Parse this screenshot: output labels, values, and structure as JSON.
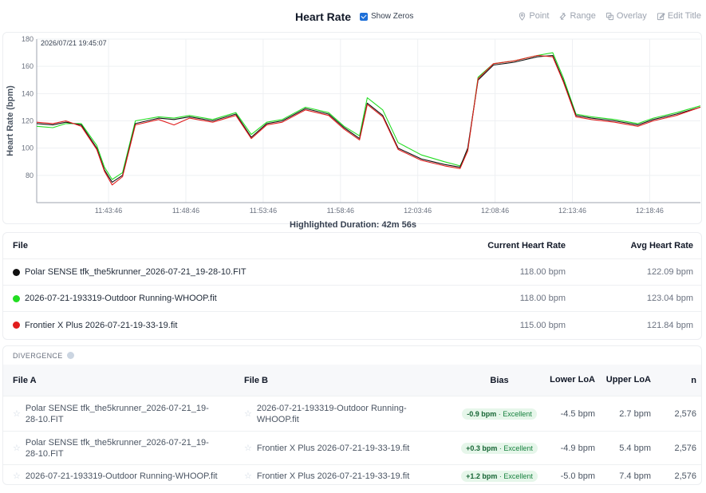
{
  "header": {
    "title": "Heart Rate",
    "show_zeros_label": "Show Zeros",
    "tools": [
      {
        "label": "Point",
        "icon": "pin-icon"
      },
      {
        "label": "Range",
        "icon": "range-icon"
      },
      {
        "label": "Overlay",
        "icon": "overlay-icon"
      },
      {
        "label": "Edit Title",
        "icon": "edit-icon"
      }
    ]
  },
  "chart_data": {
    "type": "line",
    "ylabel": "Heart Rate (bpm)",
    "xlabel": "",
    "ylim": [
      60,
      180
    ],
    "yticks": [
      80,
      100,
      120,
      140,
      160,
      180
    ],
    "xlim": [
      "11:39:07",
      "12:22:03"
    ],
    "xtick_labels": [
      "11:43:46",
      "11:48:46",
      "11:53:46",
      "11:58:46",
      "12:03:46",
      "12:08:46",
      "12:13:46",
      "12:18:46"
    ],
    "timestamp_label": "2026/07/21 19:45:07",
    "grid": true,
    "series": [
      {
        "name": "Polar SENSE tfk_the5krunner_2026-07-21_19-28-10.FIT",
        "color": "#111111",
        "x": [
          "11:39:07",
          "11:40:10",
          "11:41:00",
          "11:42:00",
          "11:43:00",
          "11:43:30",
          "11:44:00",
          "11:44:40",
          "11:45:30",
          "11:47:00",
          "11:48:00",
          "11:49:00",
          "11:50:30",
          "11:52:00",
          "11:53:00",
          "11:54:00",
          "11:55:00",
          "11:56:30",
          "11:58:00",
          "11:59:00",
          "12:00:00",
          "12:00:30",
          "12:01:30",
          "12:02:30",
          "12:04:00",
          "12:05:30",
          "12:06:30",
          "12:07:00",
          "12:07:40",
          "12:08:40",
          "12:10:00",
          "12:11:30",
          "12:12:30",
          "12:13:10",
          "12:14:00",
          "12:15:00",
          "12:16:30",
          "12:18:00",
          "12:19:00",
          "12:20:30",
          "12:22:03"
        ],
        "y": [
          118,
          117,
          119,
          117,
          100,
          84,
          75,
          80,
          118,
          122,
          121,
          123,
          120,
          125,
          108,
          118,
          120,
          129,
          125,
          115,
          107,
          133,
          124,
          100,
          92,
          88,
          86,
          100,
          150,
          161,
          163,
          167,
          168,
          150,
          124,
          122,
          120,
          117,
          121,
          125,
          130
        ]
      },
      {
        "name": "2026-07-21-193319-Outdoor Running-WHOOP.fit",
        "color": "#22dd22",
        "x": [
          "11:39:07",
          "11:40:10",
          "11:41:00",
          "11:42:00",
          "11:43:00",
          "11:43:30",
          "11:44:00",
          "11:44:40",
          "11:45:30",
          "11:47:00",
          "11:48:00",
          "11:49:00",
          "11:50:30",
          "11:52:00",
          "11:53:00",
          "11:54:00",
          "11:55:00",
          "11:56:30",
          "11:58:00",
          "11:59:00",
          "12:00:00",
          "12:00:30",
          "12:01:30",
          "12:02:30",
          "12:04:00",
          "12:05:30",
          "12:06:30",
          "12:07:00",
          "12:07:40",
          "12:08:40",
          "12:10:00",
          "12:11:30",
          "12:12:30",
          "12:13:10",
          "12:14:00",
          "12:15:00",
          "12:16:30",
          "12:18:00",
          "12:19:00",
          "12:20:30",
          "12:22:03"
        ],
        "y": [
          116,
          115,
          118,
          118,
          102,
          86,
          77,
          82,
          120,
          123,
          122,
          124,
          121,
          126,
          110,
          119,
          121,
          130,
          126,
          116,
          109,
          137,
          128,
          104,
          95,
          90,
          87,
          98,
          152,
          162,
          164,
          168,
          170,
          152,
          125,
          123,
          121,
          118,
          122,
          126,
          131
        ]
      },
      {
        "name": "Frontier X Plus 2026-07-21-19-33-19.fit",
        "color": "#e11d1d",
        "x": [
          "11:39:07",
          "11:40:10",
          "11:41:00",
          "11:42:00",
          "11:43:00",
          "11:43:30",
          "11:44:00",
          "11:44:40",
          "11:45:30",
          "11:47:00",
          "11:48:00",
          "11:49:00",
          "11:50:30",
          "11:52:00",
          "11:53:00",
          "11:54:00",
          "11:55:00",
          "11:56:30",
          "11:58:00",
          "11:59:00",
          "12:00:00",
          "12:00:30",
          "12:01:30",
          "12:02:30",
          "12:04:00",
          "12:05:30",
          "12:06:30",
          "12:07:00",
          "12:07:40",
          "12:08:40",
          "12:10:00",
          "12:11:30",
          "12:12:30",
          "12:13:10",
          "12:14:00",
          "12:15:00",
          "12:16:30",
          "12:18:00",
          "12:19:00",
          "12:20:30",
          "12:22:03"
        ],
        "y": [
          119,
          118,
          120,
          116,
          99,
          83,
          73,
          79,
          117,
          121,
          117,
          122,
          119,
          124,
          107,
          117,
          119,
          128,
          124,
          114,
          106,
          132,
          123,
          99,
          91,
          87,
          85,
          98,
          151,
          162,
          164,
          168,
          167,
          149,
          123,
          121,
          119,
          116,
          120,
          124,
          130
        ]
      }
    ]
  },
  "highlight": {
    "label": "Highlighted Duration: 42m 56s"
  },
  "files": {
    "headers": {
      "file": "File",
      "current": "Current Heart Rate",
      "avg": "Avg Heart Rate"
    },
    "rows": [
      {
        "name": "Polar SENSE tfk_the5krunner_2026-07-21_19-28-10.FIT",
        "color": "#111111",
        "current": "118.00 bpm",
        "avg": "122.09 bpm"
      },
      {
        "name": "2026-07-21-193319-Outdoor Running-WHOOP.fit",
        "color": "#22dd22",
        "current": "118.00 bpm",
        "avg": "123.04 bpm"
      },
      {
        "name": "Frontier X Plus 2026-07-21-19-33-19.fit",
        "color": "#e11d1d",
        "current": "115.00 bpm",
        "avg": "121.84 bpm"
      }
    ]
  },
  "divergence": {
    "title": "DIVERGENCE",
    "headers": {
      "file_a": "File A",
      "file_b": "File B",
      "bias": "Bias",
      "lower": "Lower LoA",
      "upper": "Upper LoA",
      "n": "n"
    },
    "rows": [
      {
        "file_a": "Polar SENSE tfk_the5krunner_2026-07-21_19-28-10.FIT",
        "file_b": "2026-07-21-193319-Outdoor Running-WHOOP.fit",
        "bias_value": "-0.9 bpm",
        "bias_rating": "· Excellent",
        "lower": "-4.5 bpm",
        "upper": "2.7 bpm",
        "n": "2,576"
      },
      {
        "file_a": "Polar SENSE tfk_the5krunner_2026-07-21_19-28-10.FIT",
        "file_b": "Frontier X Plus 2026-07-21-19-33-19.fit",
        "bias_value": "+0.3 bpm",
        "bias_rating": "· Excellent",
        "lower": "-4.9 bpm",
        "upper": "5.4 bpm",
        "n": "2,576"
      },
      {
        "file_a": "2026-07-21-193319-Outdoor Running-WHOOP.fit",
        "file_b": "Frontier X Plus 2026-07-21-19-33-19.fit",
        "bias_value": "+1.2 bpm",
        "bias_rating": "· Excellent",
        "lower": "-5.0 bpm",
        "upper": "7.4 bpm",
        "n": "2,576"
      }
    ]
  }
}
